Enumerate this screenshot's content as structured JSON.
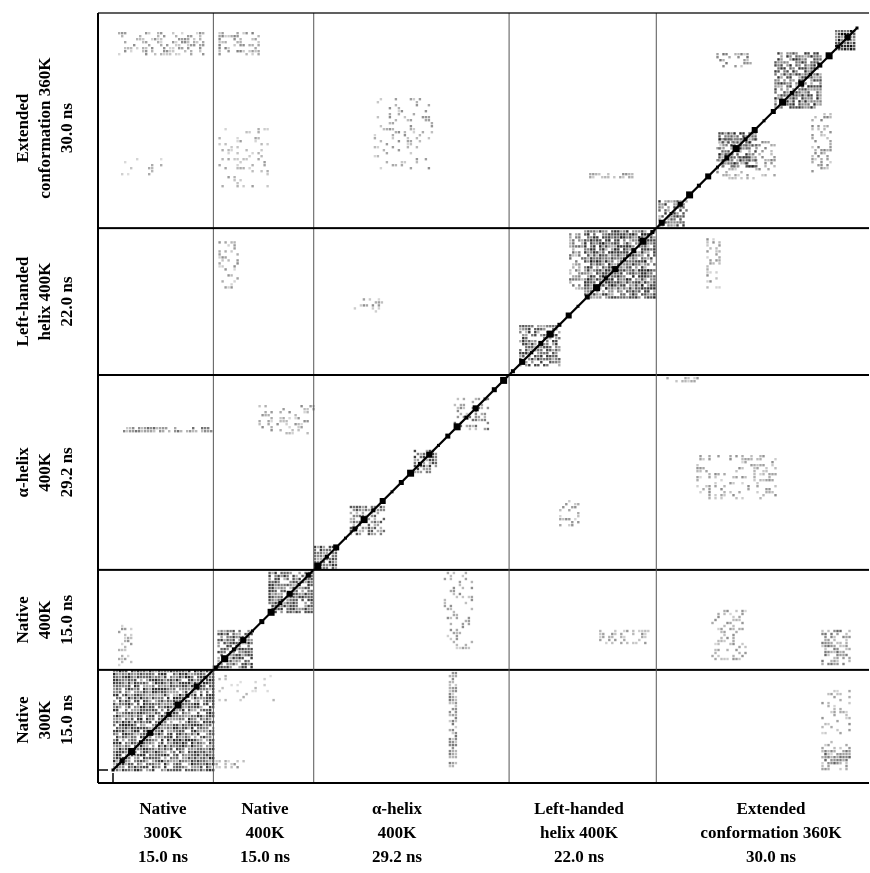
{
  "chart_data": {
    "type": "heatmap",
    "title": "",
    "colors": {
      "frame": "#000000",
      "divider_minor": "#555555",
      "ink": "#000000"
    },
    "segments": [
      {
        "id": "native-300k",
        "lines": [
          "Native",
          "300K",
          "15.0 ns"
        ],
        "duration_ns": 15.0
      },
      {
        "id": "native-400k",
        "lines": [
          "Native",
          "400K",
          "15.0 ns"
        ],
        "duration_ns": 15.0
      },
      {
        "id": "alpha-helix-400k",
        "lines": [
          "α-helix",
          "400K",
          "29.2 ns"
        ],
        "duration_ns": 29.2
      },
      {
        "id": "left-handed-helix-400k",
        "lines": [
          "Left-handed",
          "helix 400K",
          "22.0 ns"
        ],
        "duration_ns": 22.0
      },
      {
        "id": "extended-360k",
        "lines": [
          "Extended",
          "conformation 360K",
          "30.0 ns"
        ],
        "duration_ns": 30.0
      }
    ],
    "y_labels": [
      {
        "id": "native-300k",
        "lines": [
          "Native",
          "300K",
          "15.0 ns"
        ]
      },
      {
        "id": "native-400k",
        "lines": [
          "Native",
          "400K",
          "15.0 ns"
        ]
      },
      {
        "id": "alpha-helix-400k",
        "lines": [
          "α-helix",
          "400K",
          "29.2 ns"
        ]
      },
      {
        "id": "left-handed-helix-400k",
        "lines": [
          "Left-handed",
          "helix 400K",
          "22.0 ns"
        ]
      },
      {
        "id": "extended-360k",
        "lines": [
          "Extended",
          "conformation 360K",
          "30.0 ns"
        ]
      }
    ],
    "axis_order_y": "bottom-to-top",
    "grid": false,
    "legend": "none"
  }
}
